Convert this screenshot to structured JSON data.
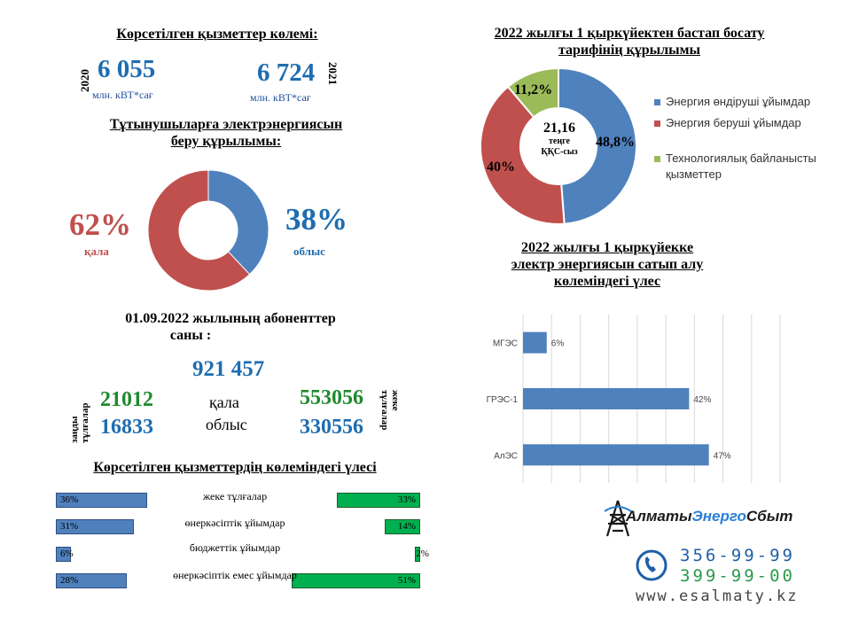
{
  "volume": {
    "title": "Көрсетілген қызметтер көлемі:",
    "y2020": {
      "year": "2020",
      "value": "6 055",
      "unit": "млн. кВТ*сағ"
    },
    "y2021": {
      "year": "2021",
      "value": "6 724",
      "unit": "млн. кВТ*сағ"
    }
  },
  "consumer_structure": {
    "title_line1": "Тұтынушыларға электрэнергиясын",
    "title_line2": "беру құрылымы:",
    "city_pct": "62%",
    "city_label": "қала",
    "region_pct": "38%",
    "region_label": "облыс"
  },
  "subscribers": {
    "title_line1": "01.09.2022 жылының абоненттер",
    "title_line2": "саны :",
    "total": "921 457",
    "legal_label_1": "заңды",
    "legal_label_2": "тұлғалар",
    "individual_label_1": "жеке",
    "individual_label_2": "тұлғалар",
    "city_word": "қала",
    "region_word": "облыс",
    "legal_city": "21012",
    "legal_region": "16833",
    "ind_city": "553056",
    "ind_region": "330556"
  },
  "service_share": {
    "title": "Көрсетілген қызметтердің көлеміндегі үлесі"
  },
  "tariff": {
    "title_line1": "2022 жылғы 1 қыркүйектен бастап босату",
    "title_line2": "тарифінің құрылымы",
    "center_value": "21,16",
    "center_line2": "теңге",
    "center_line3": "ҚҚС-сыз"
  },
  "purchase": {
    "title_line1": "2022 жылғы 1 қыркүйекке",
    "title_line2": "электр энергиясын сатып алу",
    "title_line3": "көлеміндегі үлес"
  },
  "logo": {
    "brand_part1": "Алматы",
    "brand_part2": "Энерго",
    "brand_part3": "Сбыт",
    "phone1": "356-99-99",
    "phone2": "399-99-00",
    "website": "www.esalmaty.kz"
  },
  "colors": {
    "blue": "#4f81bd",
    "red": "#c0504d",
    "green": "#9bbb59",
    "bar_green": "#00b050"
  },
  "chart_data": [
    {
      "type": "pie",
      "categories": [
        "облыс",
        "қала"
      ],
      "values": [
        38,
        62
      ],
      "colors": [
        "#4f81bd",
        "#c0504d"
      ]
    },
    {
      "type": "pie",
      "categories": [
        "Энергия өндіруші ұйымдар",
        "Энергия беруші ұйымдар",
        "Технологиялық байланысты қызметтер"
      ],
      "values": [
        48.8,
        40,
        11.2
      ],
      "labels": [
        "48,8%",
        "40%",
        "11,2%"
      ],
      "colors": [
        "#4f81bd",
        "#c0504d",
        "#9bbb59"
      ],
      "legend_position": "right"
    },
    {
      "type": "bar",
      "orientation": "horizontal",
      "categories": [
        "МГЭС",
        "ГРЭС-1",
        "АлЭС"
      ],
      "values": [
        6,
        42,
        47
      ],
      "labels": [
        "6%",
        "42%",
        "47%"
      ],
      "xlim": [
        0,
        65
      ],
      "grid": true
    },
    {
      "type": "bar",
      "orientation": "diverging",
      "categories": [
        "жеке тұлғалар",
        "өнеркәсіптік ұйымдар",
        "бюджеттік ұйымдар",
        "өнеркәсіптік емес ұйымдар"
      ],
      "series": [
        {
          "values": [
            36,
            31,
            6,
            28
          ],
          "labels": [
            "36%",
            "31%",
            "6%",
            "28%"
          ]
        },
        {
          "values": [
            33,
            14,
            2,
            51
          ],
          "labels": [
            "33%",
            "14%",
            "2%",
            "51%"
          ]
        }
      ]
    }
  ]
}
